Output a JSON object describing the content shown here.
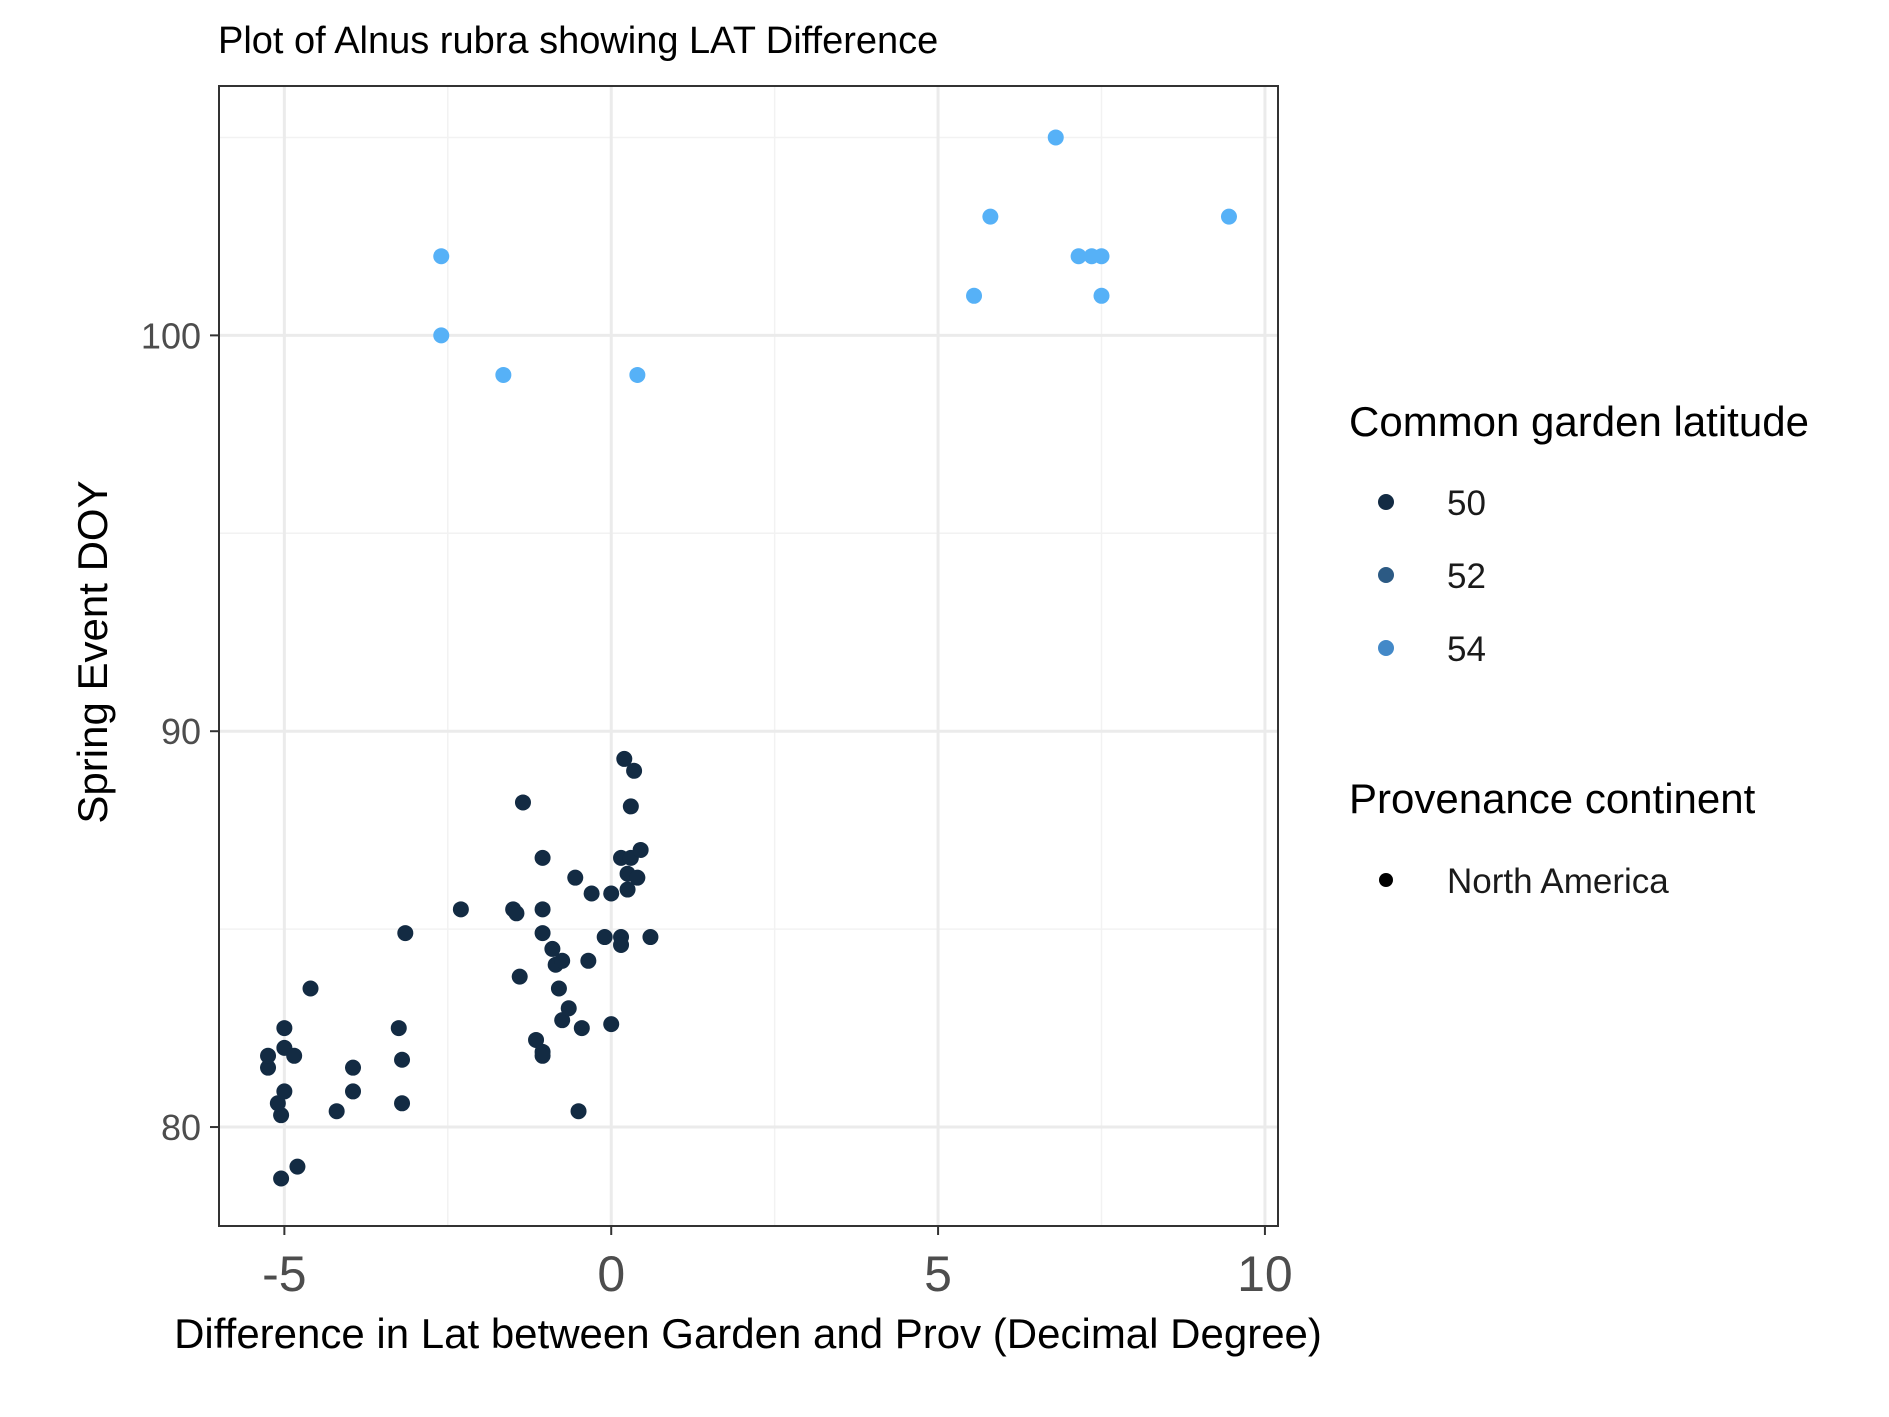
{
  "chart_data": {
    "type": "scatter",
    "title": "Plot of Alnus rubra showing LAT Difference",
    "xlabel": "Difference in Lat between Garden and Prov (Decimal Degree)",
    "ylabel": "Spring Event DOY",
    "xlim": [
      -6,
      10.2
    ],
    "ylim": [
      77.5,
      106.3
    ],
    "x_ticks": [
      -5,
      0,
      5,
      10
    ],
    "x_tick_labels": [
      "-5",
      "0",
      "5",
      "10"
    ],
    "y_ticks": [
      80,
      90,
      100
    ],
    "y_tick_labels": [
      "80",
      "90",
      "100"
    ],
    "grid": true,
    "legend_position": "right",
    "legend": {
      "color_title": "Common garden latitude",
      "color_entries": [
        {
          "label": "50",
          "color": "#132b43"
        },
        {
          "label": "52",
          "color": "#2c5a84"
        },
        {
          "label": "54",
          "color": "#4389c8"
        }
      ],
      "shape_title": "Provenance continent",
      "shape_entries": [
        {
          "label": "North America",
          "color": "#000000"
        }
      ]
    },
    "series": [
      {
        "color": "#132b43",
        "points": [
          [
            -5.05,
            78.7
          ],
          [
            -4.8,
            79.0
          ],
          [
            -5.05,
            80.3
          ],
          [
            -5.1,
            80.6
          ],
          [
            -5.0,
            80.9
          ],
          [
            -5.25,
            81.5
          ],
          [
            -5.25,
            81.8
          ],
          [
            -5.0,
            82.0
          ],
          [
            -4.85,
            81.8
          ],
          [
            -5.0,
            82.5
          ],
          [
            -4.6,
            83.5
          ],
          [
            -4.2,
            80.4
          ],
          [
            -3.95,
            80.9
          ],
          [
            -3.95,
            81.5
          ],
          [
            -3.2,
            80.6
          ],
          [
            -3.2,
            81.7
          ],
          [
            -3.25,
            82.5
          ],
          [
            -3.15,
            84.9
          ],
          [
            -2.3,
            85.5
          ],
          [
            -1.5,
            85.5
          ],
          [
            -1.45,
            85.4
          ],
          [
            -1.4,
            83.8
          ],
          [
            -1.35,
            88.2
          ],
          [
            -1.15,
            82.2
          ],
          [
            -1.05,
            81.9
          ],
          [
            -1.05,
            81.8
          ],
          [
            -1.05,
            84.9
          ],
          [
            -1.05,
            85.5
          ],
          [
            -1.05,
            86.8
          ],
          [
            -0.9,
            84.5
          ],
          [
            -0.85,
            84.1
          ],
          [
            -0.8,
            83.5
          ],
          [
            -0.75,
            84.2
          ],
          [
            -0.75,
            82.7
          ],
          [
            -0.65,
            83.0
          ],
          [
            -0.55,
            86.3
          ],
          [
            -0.5,
            80.4
          ],
          [
            -0.45,
            82.5
          ],
          [
            -0.35,
            84.2
          ],
          [
            -0.3,
            85.9
          ],
          [
            -0.1,
            84.8
          ],
          [
            0.0,
            82.6
          ],
          [
            0.0,
            85.9
          ],
          [
            0.15,
            84.8
          ],
          [
            0.15,
            84.6
          ],
          [
            0.15,
            86.8
          ],
          [
            0.2,
            89.3
          ],
          [
            0.25,
            86.4
          ],
          [
            0.25,
            86.0
          ],
          [
            0.3,
            86.8
          ],
          [
            0.3,
            88.1
          ],
          [
            0.35,
            89.0
          ],
          [
            0.4,
            86.3
          ],
          [
            0.45,
            87.0
          ],
          [
            0.6,
            84.8
          ]
        ]
      },
      {
        "color": "#56b1f7",
        "points": [
          [
            -2.6,
            102
          ],
          [
            -2.6,
            100
          ],
          [
            -1.65,
            99
          ],
          [
            0.4,
            99
          ],
          [
            5.55,
            101
          ],
          [
            5.8,
            103
          ],
          [
            6.8,
            105
          ],
          [
            7.15,
            102
          ],
          [
            7.35,
            102
          ],
          [
            7.5,
            102
          ],
          [
            7.5,
            101
          ],
          [
            9.45,
            103
          ]
        ]
      }
    ]
  }
}
